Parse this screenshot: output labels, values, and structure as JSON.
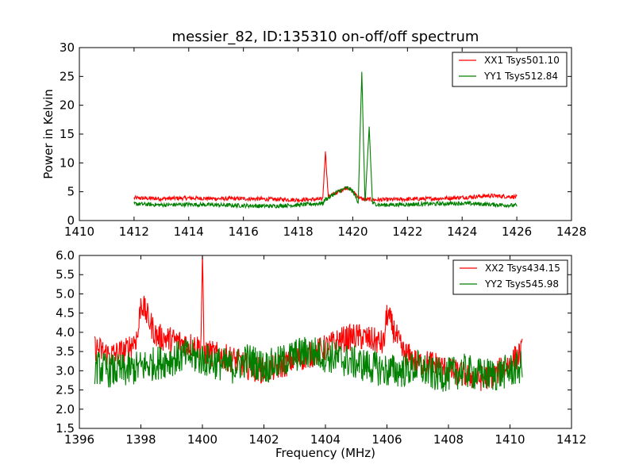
{
  "title": "messier_82, ID:135310 on-off/off spectrum",
  "colors": {
    "xx": "#ff0000",
    "yy": "#008000"
  },
  "chart_data": [
    {
      "type": "line",
      "ylabel": "Power in Kelvin",
      "xlabel": "",
      "xlim": [
        1410,
        1428
      ],
      "ylim": [
        0,
        30
      ],
      "x_ticks": [
        1410,
        1412,
        1414,
        1416,
        1418,
        1420,
        1422,
        1424,
        1426,
        1428
      ],
      "y_ticks": [
        0,
        5,
        10,
        15,
        20,
        25,
        30
      ],
      "legend_position": "top-right",
      "series": [
        {
          "name": "XX1 Tsys501.10",
          "color": "#ff0000",
          "x": [
            1412.0,
            1413.0,
            1414.0,
            1415.0,
            1416.0,
            1417.0,
            1418.0,
            1418.9,
            1419.0,
            1419.1,
            1419.4,
            1419.8,
            1420.0,
            1420.3,
            1420.4,
            1420.5,
            1420.6,
            1420.7,
            1421.0,
            1422.0,
            1423.0,
            1424.0,
            1425.0,
            1426.0
          ],
          "y": [
            3.9,
            3.8,
            3.9,
            3.8,
            3.8,
            3.7,
            3.6,
            3.7,
            12.0,
            4.2,
            4.8,
            5.8,
            5.0,
            3.8,
            3.7,
            3.6,
            3.7,
            3.6,
            3.6,
            3.7,
            3.8,
            4.0,
            4.3,
            4.1
          ]
        },
        {
          "name": "YY1 Tsys512.84",
          "color": "#008000",
          "x": [
            1412.0,
            1413.0,
            1414.0,
            1415.0,
            1416.0,
            1417.0,
            1418.0,
            1418.9,
            1419.0,
            1419.1,
            1419.4,
            1419.8,
            1420.0,
            1420.2,
            1420.33,
            1420.45,
            1420.6,
            1420.72,
            1421.0,
            1422.0,
            1423.0,
            1424.0,
            1425.0,
            1426.0
          ],
          "y": [
            2.9,
            2.7,
            2.8,
            2.7,
            2.6,
            2.5,
            2.7,
            3.0,
            3.7,
            3.9,
            4.9,
            5.7,
            5.1,
            3.2,
            25.8,
            2.6,
            16.3,
            3.0,
            2.7,
            2.8,
            2.9,
            3.0,
            2.8,
            2.6
          ]
        }
      ]
    },
    {
      "type": "line",
      "xlabel": "Frequency (MHz)",
      "ylabel": "",
      "xlim": [
        1396,
        1412
      ],
      "ylim": [
        1.5,
        6.0
      ],
      "x_ticks": [
        1396,
        1398,
        1400,
        1402,
        1404,
        1406,
        1408,
        1410,
        1412
      ],
      "y_ticks": [
        1.5,
        2.0,
        2.5,
        3.0,
        3.5,
        4.0,
        4.5,
        5.0,
        5.5,
        6.0
      ],
      "legend_position": "top-right",
      "series": [
        {
          "name": "XX2 Tsys434.15",
          "color": "#ff0000",
          "x": [
            1396.5,
            1397.0,
            1397.5,
            1397.9,
            1398.0,
            1398.5,
            1399.0,
            1399.5,
            1399.95,
            1400.0,
            1400.05,
            1400.5,
            1401.0,
            1401.5,
            1402.0,
            1402.5,
            1403.0,
            1403.5,
            1404.0,
            1404.5,
            1405.0,
            1405.5,
            1405.9,
            1406.0,
            1406.5,
            1407.0,
            1407.5,
            1408.0,
            1408.5,
            1409.0,
            1409.5,
            1410.0,
            1410.4
          ],
          "y": [
            3.6,
            3.4,
            3.5,
            3.9,
            4.8,
            3.9,
            3.8,
            3.7,
            3.6,
            6.0,
            3.5,
            3.4,
            3.3,
            3.1,
            3.0,
            3.1,
            3.3,
            3.4,
            3.6,
            3.8,
            3.9,
            3.8,
            3.7,
            4.5,
            3.5,
            3.2,
            3.2,
            3.0,
            2.9,
            2.8,
            2.9,
            3.2,
            3.5
          ]
        },
        {
          "name": "YY2 Tsys545.98",
          "color": "#008000",
          "x": [
            1396.5,
            1397.0,
            1397.5,
            1398.0,
            1398.5,
            1399.0,
            1399.5,
            1400.0,
            1400.5,
            1401.0,
            1401.5,
            1402.0,
            1402.5,
            1403.0,
            1403.5,
            1404.0,
            1404.5,
            1405.0,
            1405.5,
            1406.0,
            1406.5,
            1407.0,
            1407.5,
            1408.0,
            1408.5,
            1409.0,
            1409.5,
            1410.0,
            1410.4
          ],
          "y": [
            3.1,
            3.0,
            3.0,
            3.1,
            3.2,
            3.3,
            3.4,
            3.3,
            3.2,
            3.1,
            3.3,
            3.1,
            3.2,
            3.4,
            3.5,
            3.4,
            3.3,
            3.2,
            3.1,
            3.0,
            3.0,
            3.1,
            2.9,
            2.9,
            3.0,
            2.9,
            2.9,
            3.0,
            3.1
          ]
        }
      ]
    }
  ]
}
